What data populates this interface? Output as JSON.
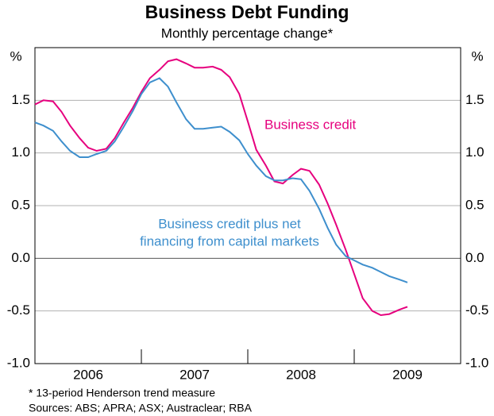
{
  "chart_data": {
    "type": "line",
    "title": "Business Debt Funding",
    "subtitle": "Monthly percentage change*",
    "y_unit": "%",
    "x": [
      2006.0,
      2006.08,
      2006.17,
      2006.25,
      2006.33,
      2006.42,
      2006.5,
      2006.58,
      2006.67,
      2006.75,
      2006.83,
      2006.92,
      2007.0,
      2007.08,
      2007.17,
      2007.25,
      2007.33,
      2007.42,
      2007.5,
      2007.58,
      2007.67,
      2007.75,
      2007.83,
      2007.92,
      2008.0,
      2008.08,
      2008.17,
      2008.25,
      2008.33,
      2008.42,
      2008.5,
      2008.58,
      2008.67,
      2008.75,
      2008.83,
      2008.92,
      2009.0,
      2009.08,
      2009.17,
      2009.25,
      2009.33,
      2009.42,
      2009.5
    ],
    "xlim": [
      2006,
      2010
    ],
    "xticks": [
      {
        "value": 2006,
        "label": "2006"
      },
      {
        "value": 2007,
        "label": "2007"
      },
      {
        "value": 2008,
        "label": "2008"
      },
      {
        "value": 2009,
        "label": "2009"
      }
    ],
    "ylim": [
      -1,
      2
    ],
    "yticks": [
      {
        "value": -1,
        "label": "-1.0"
      },
      -0.5,
      {
        "value": 0,
        "label": "0.0"
      },
      0.5,
      {
        "value": 1,
        "label": "1.0"
      },
      1.5
    ],
    "grid": true,
    "series": [
      {
        "name": "Business credit",
        "color": "#e6007e",
        "values": [
          1.46,
          1.5,
          1.49,
          1.39,
          1.26,
          1.14,
          1.05,
          1.02,
          1.04,
          1.14,
          1.28,
          1.43,
          1.58,
          1.71,
          1.79,
          1.87,
          1.89,
          1.85,
          1.81,
          1.81,
          1.82,
          1.79,
          1.72,
          1.56,
          1.3,
          1.03,
          0.88,
          0.73,
          0.71,
          0.79,
          0.85,
          0.83,
          0.7,
          0.52,
          0.32,
          0.08,
          -0.15,
          -0.38,
          -0.5,
          -0.54,
          -0.53,
          -0.49,
          -0.46
        ]
      },
      {
        "name": "Business credit plus net financing from capital markets",
        "color": "#3e8fcd",
        "values": [
          1.29,
          1.26,
          1.21,
          1.11,
          1.02,
          0.96,
          0.96,
          0.99,
          1.02,
          1.11,
          1.24,
          1.4,
          1.56,
          1.67,
          1.71,
          1.63,
          1.48,
          1.32,
          1.23,
          1.23,
          1.24,
          1.25,
          1.2,
          1.12,
          0.99,
          0.88,
          0.78,
          0.74,
          0.74,
          0.76,
          0.75,
          0.64,
          0.47,
          0.29,
          0.13,
          0.02,
          -0.02,
          -0.06,
          -0.09,
          -0.13,
          -0.17,
          -0.2,
          -0.23
        ]
      }
    ],
    "annotations": [
      {
        "lines": [
          "Business credit"
        ]
      },
      {
        "lines": [
          "Business credit plus net",
          "financing from capital markets"
        ]
      }
    ],
    "notes": [
      "*    13-period Henderson trend measure",
      "Sources: ABS; APRA; ASX; Austraclear; RBA"
    ]
  }
}
